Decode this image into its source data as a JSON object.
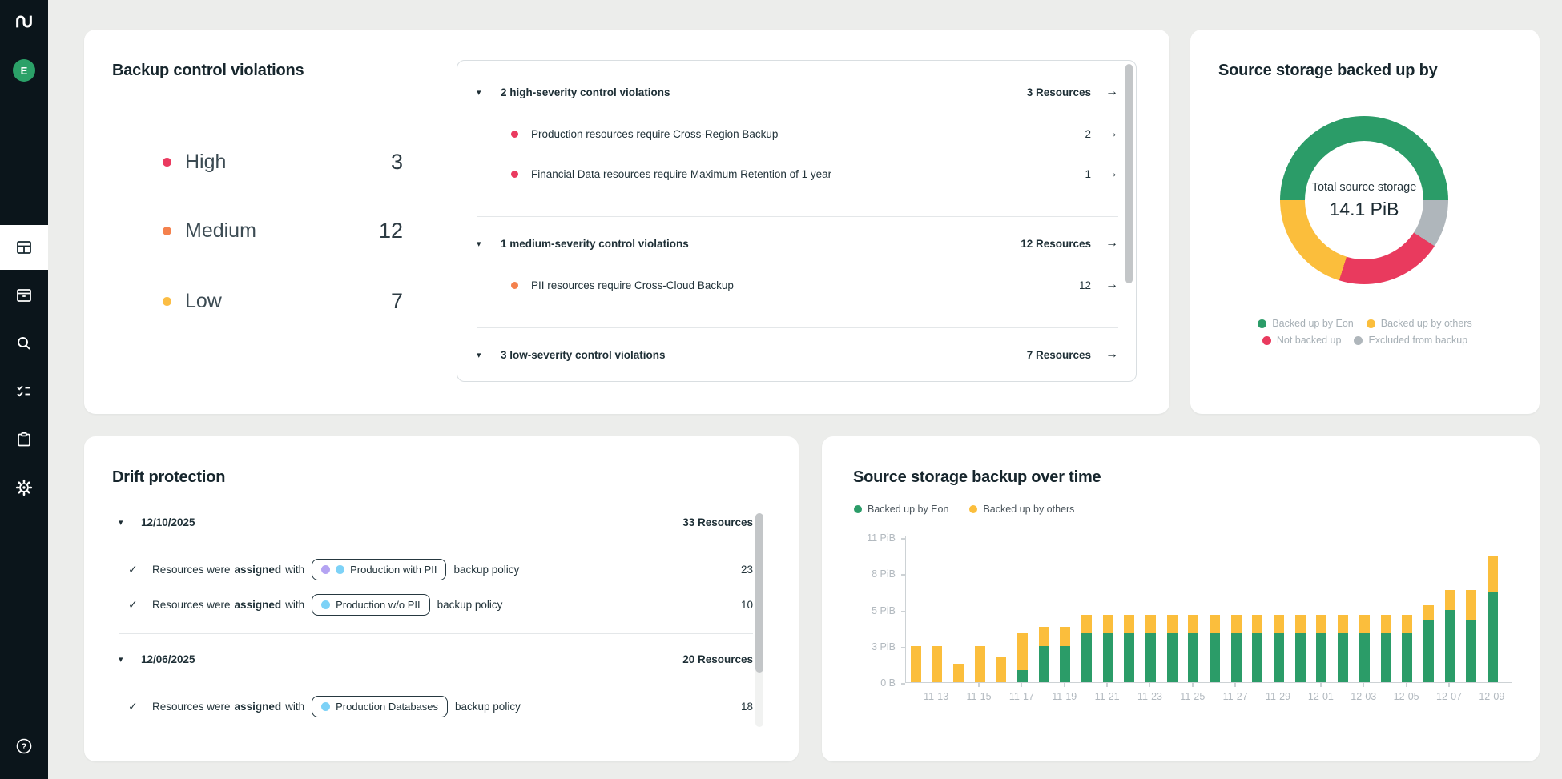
{
  "app": {
    "sidebar": {
      "logo": "eon-logo",
      "avatar_initial": "E",
      "nav_items": [
        {
          "name": "dashboard",
          "active": true
        },
        {
          "name": "archive",
          "active": false
        },
        {
          "name": "search",
          "active": false
        },
        {
          "name": "checklist",
          "active": false
        },
        {
          "name": "clipboard",
          "active": false
        },
        {
          "name": "settings",
          "active": false
        }
      ],
      "help": "help"
    }
  },
  "violations_card": {
    "title": "Backup control violations",
    "summary": [
      {
        "label": "High",
        "count": "3",
        "color": "#EA3A5F"
      },
      {
        "label": "Medium",
        "count": "12",
        "color": "#F4814D"
      },
      {
        "label": "Low",
        "count": "7",
        "color": "#FBBD44"
      }
    ],
    "groups": [
      {
        "header": "2 high-severity control violations",
        "resources": "3 Resources",
        "dot_color": "#EA3A5F",
        "items": [
          {
            "text": "Production resources require Cross-Region Backup",
            "count": "2"
          },
          {
            "text": "Financial Data resources require Maximum Retention of 1 year",
            "count": "1"
          }
        ]
      },
      {
        "header": "1 medium-severity control violations",
        "resources": "12 Resources",
        "dot_color": "#F4814D",
        "items": [
          {
            "text": "PII resources require Cross-Cloud Backup",
            "count": "12"
          }
        ]
      },
      {
        "header": "3 low-severity control violations",
        "resources": "7 Resources",
        "dot_color": "#FBBD44",
        "items": []
      }
    ]
  },
  "drift_card": {
    "title": "Drift protection",
    "groups": [
      {
        "date": "12/10/2025",
        "resources": "33 Resources",
        "rows": [
          {
            "prefix": "Resources were",
            "bold": "assigned",
            "mid": "with",
            "chip": {
              "label": "Production with PII",
              "dots": [
                "#B4A3F2",
                "#7DD2F7"
              ]
            },
            "suffix": "backup policy",
            "count": "23"
          },
          {
            "prefix": "Resources were",
            "bold": "assigned",
            "mid": "with",
            "chip": {
              "label": "Production w/o PII",
              "dots": [
                "#7DD2F7"
              ]
            },
            "suffix": "backup policy",
            "count": "10"
          }
        ]
      },
      {
        "date": "12/06/2025",
        "resources": "20 Resources",
        "rows": [
          {
            "prefix": "Resources were",
            "bold": "assigned",
            "mid": "with",
            "chip": {
              "label": "Production Databases",
              "dots": [
                "#7DD2F7"
              ]
            },
            "suffix": "backup policy",
            "count": "18"
          }
        ]
      }
    ]
  },
  "chart_data": [
    {
      "type": "pie",
      "title": "Source storage backed up by",
      "center_label": "Total source storage",
      "center_value": "14.1 PiB",
      "start_angle_deg": 270,
      "segments": [
        {
          "name": "Backed up by Eon",
          "pct": 50.0,
          "color": "#2B9C68"
        },
        {
          "name": "Excluded from backup",
          "pct": 9.2,
          "color": "#AFB6BB"
        },
        {
          "name": "Not backed up",
          "pct": 20.6,
          "color": "#E93A5E"
        },
        {
          "name": "Backed up by others",
          "pct": 20.2,
          "color": "#FBBE3C"
        }
      ],
      "legend_rows": [
        [
          "Backed up by Eon",
          "Backed up by others"
        ],
        [
          "Not backed up",
          "Excluded from backup"
        ]
      ],
      "legend_position": "bottom"
    },
    {
      "type": "bar",
      "stacked": true,
      "title": "Source storage backup over time",
      "categories": [
        "11-12",
        "11-13",
        "11-14",
        "11-15",
        "11-16",
        "11-17",
        "11-18",
        "11-19",
        "11-20",
        "11-21",
        "11-22",
        "11-23",
        "11-24",
        "11-25",
        "11-26",
        "11-27",
        "11-28",
        "11-29",
        "11-30",
        "12-01",
        "12-02",
        "12-03",
        "12-04",
        "12-05",
        "12-06",
        "12-07",
        "12-08",
        "12-09"
      ],
      "series": [
        {
          "name": "Backed up by Eon",
          "color": "#2B9C68",
          "values": [
            0,
            0,
            0,
            0,
            0,
            1.0,
            3.0,
            3.0,
            3.7,
            3.7,
            3.7,
            3.7,
            3.7,
            3.7,
            3.7,
            3.7,
            3.7,
            3.7,
            3.7,
            3.7,
            3.7,
            3.7,
            3.7,
            3.7,
            4.4,
            5.0,
            4.4,
            6.4
          ]
        },
        {
          "name": "Backed up by others",
          "color": "#FBBE3C",
          "values": [
            3.0,
            3.0,
            1.55,
            3.0,
            2.05,
            2.7,
            1.05,
            1.05,
            1.0,
            1.0,
            1.0,
            1.0,
            1.0,
            1.0,
            1.0,
            1.0,
            1.0,
            1.0,
            1.0,
            1.0,
            1.0,
            1.0,
            1.0,
            1.0,
            1.0,
            1.6,
            2.25,
            3.0
          ]
        }
      ],
      "unit": "PiB",
      "y_ticks": [
        {
          "value": 0,
          "label": "0 B"
        },
        {
          "value": 3,
          "label": "3 PiB"
        },
        {
          "value": 5,
          "label": "5 PiB"
        },
        {
          "value": 8,
          "label": "8 PiB"
        },
        {
          "value": 11,
          "label": "11 PiB"
        }
      ],
      "x_tick_labels": [
        "11-13",
        "11-15",
        "11-17",
        "11-19",
        "11-21",
        "11-23",
        "11-25",
        "11-27",
        "11-29",
        "12-01",
        "12-03",
        "12-05",
        "12-07",
        "12-09"
      ],
      "axis_note": "y ticks evenly spaced (piecewise scale)",
      "grid": false,
      "legend_position": "top-left"
    }
  ]
}
